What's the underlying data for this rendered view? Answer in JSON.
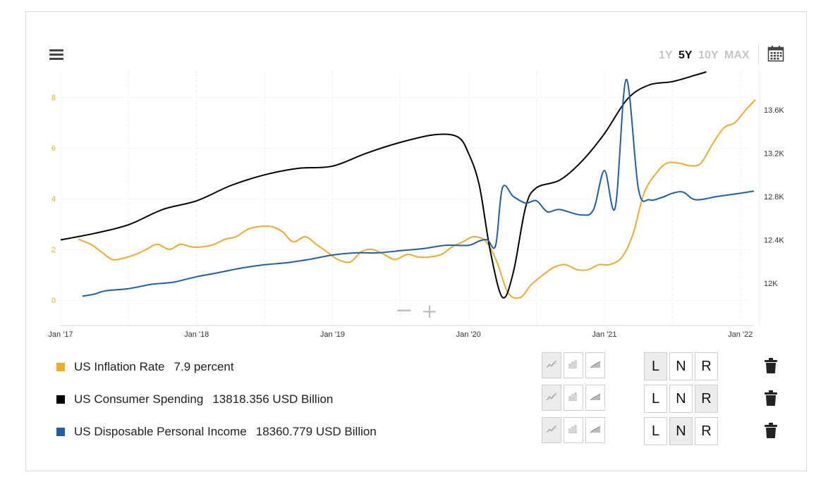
{
  "toolbar": {
    "ranges": [
      {
        "label": "1Y",
        "active": false
      },
      {
        "label": "5Y",
        "active": true
      },
      {
        "label": "10Y",
        "active": false
      },
      {
        "label": "MAX",
        "active": false
      }
    ],
    "menu_icon": "hamburger-menu-icon",
    "calendar_icon": "calendar-icon"
  },
  "zoom": {
    "minus": "−",
    "plus": "+"
  },
  "chart_data": {
    "type": "line",
    "x_start": 2017.0,
    "x_end": 2022.1,
    "x_ticks": [
      {
        "label": "Jan '17",
        "t": 2017.0
      },
      {
        "label": "Jan '18",
        "t": 2018.0
      },
      {
        "label": "Jan '19",
        "t": 2019.0
      },
      {
        "label": "Jan '20",
        "t": 2020.0
      },
      {
        "label": "Jan '21",
        "t": 2021.0
      },
      {
        "label": "Jan '22",
        "t": 2022.0
      }
    ],
    "left_axis": {
      "ticks": [
        0,
        2,
        4,
        6,
        8
      ],
      "labels": [
        "0",
        "2",
        "4",
        "6",
        "8"
      ],
      "color": "#f0ab2b",
      "range": [
        -1.0,
        9.0
      ]
    },
    "right_axis": {
      "ticks": [
        12000,
        12400,
        12800,
        13200,
        13600
      ],
      "labels": [
        "12K",
        "12.4K",
        "12.8K",
        "13.2K",
        "13.6K"
      ],
      "range": [
        11610,
        13950
      ]
    },
    "series": [
      {
        "name": "US Inflation Rate",
        "value_text": "7.9 percent",
        "color": "#f0ab2b",
        "axis": "left",
        "points": [
          [
            2017.13,
            2.4
          ],
          [
            2017.22,
            2.2
          ],
          [
            2017.3,
            1.9
          ],
          [
            2017.38,
            1.6
          ],
          [
            2017.46,
            1.65
          ],
          [
            2017.55,
            1.8
          ],
          [
            2017.63,
            2.0
          ],
          [
            2017.71,
            2.2
          ],
          [
            2017.8,
            2.0
          ],
          [
            2017.88,
            2.2
          ],
          [
            2017.96,
            2.1
          ],
          [
            2018.04,
            2.1
          ],
          [
            2018.13,
            2.2
          ],
          [
            2018.21,
            2.4
          ],
          [
            2018.29,
            2.5
          ],
          [
            2018.38,
            2.8
          ],
          [
            2018.46,
            2.9
          ],
          [
            2018.55,
            2.9
          ],
          [
            2018.63,
            2.7
          ],
          [
            2018.71,
            2.3
          ],
          [
            2018.8,
            2.5
          ],
          [
            2018.88,
            2.2
          ],
          [
            2018.96,
            1.9
          ],
          [
            2019.04,
            1.6
          ],
          [
            2019.13,
            1.5
          ],
          [
            2019.21,
            1.9
          ],
          [
            2019.29,
            2.0
          ],
          [
            2019.38,
            1.8
          ],
          [
            2019.46,
            1.6
          ],
          [
            2019.55,
            1.8
          ],
          [
            2019.63,
            1.7
          ],
          [
            2019.71,
            1.7
          ],
          [
            2019.8,
            1.8
          ],
          [
            2019.88,
            2.1
          ],
          [
            2019.96,
            2.3
          ],
          [
            2020.04,
            2.5
          ],
          [
            2020.13,
            2.3
          ],
          [
            2020.21,
            1.5
          ],
          [
            2020.29,
            0.3
          ],
          [
            2020.38,
            0.1
          ],
          [
            2020.46,
            0.6
          ],
          [
            2020.55,
            1.0
          ],
          [
            2020.63,
            1.3
          ],
          [
            2020.71,
            1.4
          ],
          [
            2020.8,
            1.2
          ],
          [
            2020.88,
            1.2
          ],
          [
            2020.96,
            1.4
          ],
          [
            2021.04,
            1.4
          ],
          [
            2021.13,
            1.7
          ],
          [
            2021.21,
            2.6
          ],
          [
            2021.29,
            4.2
          ],
          [
            2021.38,
            5.0
          ],
          [
            2021.46,
            5.4
          ],
          [
            2021.55,
            5.4
          ],
          [
            2021.63,
            5.3
          ],
          [
            2021.71,
            5.4
          ],
          [
            2021.8,
            6.2
          ],
          [
            2021.88,
            6.8
          ],
          [
            2021.96,
            7.0
          ],
          [
            2022.04,
            7.5
          ],
          [
            2022.11,
            7.9
          ]
        ]
      },
      {
        "name": "US Consumer Spending",
        "value_text": "13818.356 USD Billion",
        "color": "#000000",
        "axis": "right",
        "points": [
          [
            2017.0,
            12400
          ],
          [
            2017.25,
            12460
          ],
          [
            2017.5,
            12540
          ],
          [
            2017.75,
            12680
          ],
          [
            2018.0,
            12760
          ],
          [
            2018.25,
            12900
          ],
          [
            2018.5,
            13000
          ],
          [
            2018.75,
            13060
          ],
          [
            2019.0,
            13080
          ],
          [
            2019.25,
            13200
          ],
          [
            2019.5,
            13300
          ],
          [
            2019.75,
            13370
          ],
          [
            2019.92,
            13350
          ],
          [
            2020.0,
            13200
          ],
          [
            2020.08,
            12900
          ],
          [
            2020.16,
            12300
          ],
          [
            2020.25,
            11870
          ],
          [
            2020.33,
            12100
          ],
          [
            2020.42,
            12700
          ],
          [
            2020.5,
            12880
          ],
          [
            2020.67,
            12950
          ],
          [
            2020.83,
            13120
          ],
          [
            2021.0,
            13380
          ],
          [
            2021.17,
            13700
          ],
          [
            2021.33,
            13830
          ],
          [
            2021.5,
            13860
          ],
          [
            2021.67,
            13920
          ],
          [
            2021.75,
            13950
          ]
        ]
      },
      {
        "name": "US Disposable Personal Income",
        "value_text": "18360.779 USD Billion",
        "color": "#1f5fa8",
        "axis": "right",
        "points": [
          [
            2017.16,
            11880
          ],
          [
            2017.25,
            11900
          ],
          [
            2017.33,
            11930
          ],
          [
            2017.5,
            11950
          ],
          [
            2017.67,
            11990
          ],
          [
            2017.83,
            12010
          ],
          [
            2018.0,
            12060
          ],
          [
            2018.17,
            12100
          ],
          [
            2018.33,
            12140
          ],
          [
            2018.5,
            12170
          ],
          [
            2018.67,
            12190
          ],
          [
            2018.83,
            12220
          ],
          [
            2019.0,
            12260
          ],
          [
            2019.17,
            12280
          ],
          [
            2019.33,
            12280
          ],
          [
            2019.5,
            12300
          ],
          [
            2019.67,
            12320
          ],
          [
            2019.83,
            12350
          ],
          [
            2020.0,
            12350
          ],
          [
            2020.08,
            12390
          ],
          [
            2020.14,
            12400
          ],
          [
            2020.2,
            12350
          ],
          [
            2020.25,
            12880
          ],
          [
            2020.33,
            12800
          ],
          [
            2020.42,
            12740
          ],
          [
            2020.5,
            12760
          ],
          [
            2020.58,
            12660
          ],
          [
            2020.67,
            12680
          ],
          [
            2020.83,
            12630
          ],
          [
            2020.92,
            12680
          ],
          [
            2021.0,
            13040
          ],
          [
            2021.08,
            12700
          ],
          [
            2021.16,
            13880
          ],
          [
            2021.25,
            12870
          ],
          [
            2021.33,
            12770
          ],
          [
            2021.42,
            12790
          ],
          [
            2021.5,
            12830
          ],
          [
            2021.58,
            12840
          ],
          [
            2021.67,
            12770
          ],
          [
            2021.83,
            12800
          ],
          [
            2022.0,
            12830
          ],
          [
            2022.1,
            12850
          ]
        ]
      }
    ]
  },
  "legend_controls": {
    "type_icons": [
      "line-type-icon",
      "bar-type-icon",
      "area-type-icon"
    ],
    "axis_labels": [
      "L",
      "N",
      "R"
    ],
    "rows": [
      {
        "type_active": 0,
        "axis_active": 0
      },
      {
        "type_active": 0,
        "axis_active": 2
      },
      {
        "type_active": 0,
        "axis_active": 1
      }
    ],
    "trash_icon": "trash-icon"
  }
}
